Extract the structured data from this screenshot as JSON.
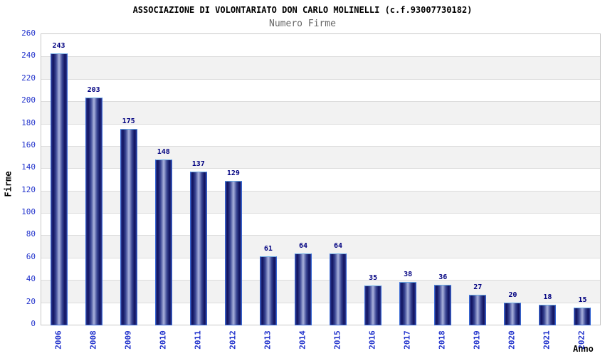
{
  "header": {
    "title": "ASSOCIAZIONE DI VOLONTARIATO DON CARLO MOLINELLI (c.f.93007730182)",
    "subtitle": "Numero Firme"
  },
  "chart_data": {
    "type": "bar",
    "title": "ASSOCIAZIONE DI VOLONTARIATO DON CARLO MOLINELLI (c.f.93007730182)",
    "subtitle": "Numero Firme",
    "xlabel": "Anno",
    "ylabel": "Firme",
    "categories": [
      "2006",
      "2008",
      "2009",
      "2010",
      "2011",
      "2012",
      "2013",
      "2014",
      "2015",
      "2016",
      "2017",
      "2018",
      "2019",
      "2020",
      "2021",
      "2022"
    ],
    "values": [
      243,
      203,
      175,
      148,
      137,
      129,
      61,
      64,
      64,
      35,
      38,
      36,
      27,
      20,
      18,
      15
    ],
    "ylim": [
      0,
      260
    ],
    "ytick_step": 20,
    "yticks": [
      0,
      20,
      40,
      60,
      80,
      100,
      120,
      140,
      160,
      180,
      200,
      220,
      240,
      260
    ],
    "grid": true,
    "legend_position": "none",
    "colors": {
      "bar_dark": "#10125e",
      "bar_mid": "#2e3c96",
      "bar_light": "#aab2dc",
      "bar_border": "#3a6ad4",
      "bar_border_top": "#6aaae4",
      "axis_tick_label": "#2233cc",
      "value_label": "#000080",
      "band_gray": "#f2f2f2",
      "gridline": "#dcdcdc",
      "plot_border": "#c8c8c8",
      "title": "#000000",
      "subtitle": "#666666"
    }
  }
}
